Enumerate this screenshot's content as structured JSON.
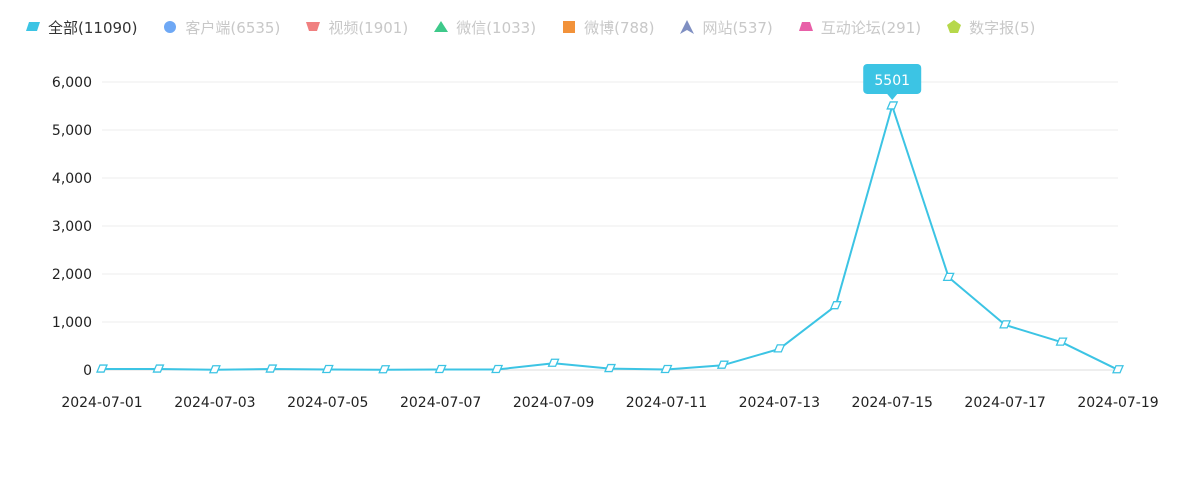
{
  "legend": {
    "items": [
      {
        "label": "全部(11090)",
        "shape": "parallelogram",
        "color": "#3cc4e4",
        "active": true
      },
      {
        "label": "客户端(6535)",
        "shape": "circle",
        "color": "#6ea8f5",
        "active": false
      },
      {
        "label": "视频(1901)",
        "shape": "trapezoid-down",
        "color": "#f08080",
        "active": false
      },
      {
        "label": "微信(1033)",
        "shape": "triangle",
        "color": "#3ec98a",
        "active": false
      },
      {
        "label": "微博(788)",
        "shape": "square",
        "color": "#f2923a",
        "active": false
      },
      {
        "label": "网站(537)",
        "shape": "arrow",
        "color": "#7f8fc2",
        "active": false
      },
      {
        "label": "互动论坛(291)",
        "shape": "trapezoid-up",
        "color": "#e860a8",
        "active": false
      },
      {
        "label": "数字报(5)",
        "shape": "pentagon",
        "color": "#b6d84a",
        "active": false
      }
    ]
  },
  "chart_data": {
    "type": "line",
    "x": [
      "2024-07-01",
      "2024-07-02",
      "2024-07-03",
      "2024-07-04",
      "2024-07-05",
      "2024-07-06",
      "2024-07-07",
      "2024-07-08",
      "2024-07-09",
      "2024-07-10",
      "2024-07-11",
      "2024-07-12",
      "2024-07-13",
      "2024-07-14",
      "2024-07-15",
      "2024-07-16",
      "2024-07-17",
      "2024-07-18",
      "2024-07-19"
    ],
    "x_tick_labels": [
      "2024-07-01",
      "2024-07-03",
      "2024-07-05",
      "2024-07-07",
      "2024-07-09",
      "2024-07-11",
      "2024-07-13",
      "2024-07-15",
      "2024-07-17",
      "2024-07-19"
    ],
    "series": [
      {
        "name": "全部(11090)",
        "color": "#3cc4e4",
        "values": [
          20,
          20,
          5,
          20,
          10,
          5,
          10,
          10,
          140,
          30,
          10,
          100,
          440,
          1340,
          5501,
          1930,
          940,
          580,
          5
        ]
      }
    ],
    "ylim": [
      0,
      6000
    ],
    "y_ticks": [
      0,
      1000,
      2000,
      3000,
      4000,
      5000,
      6000
    ],
    "y_tick_labels": [
      "0",
      "1,000",
      "2,000",
      "3,000",
      "4,000",
      "5,000",
      "6,000"
    ],
    "tooltip": {
      "x": "2024-07-15",
      "label": "5501"
    },
    "grid": true,
    "legend_position": "top-left",
    "title": "",
    "xlabel": "",
    "ylabel": ""
  }
}
